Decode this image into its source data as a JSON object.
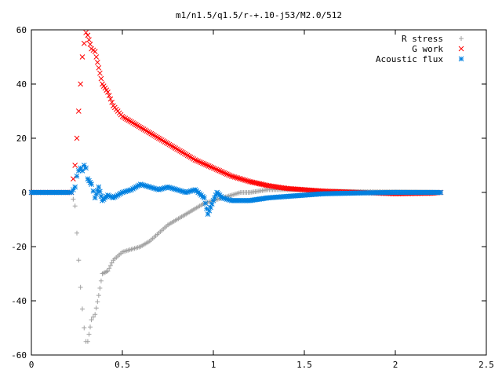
{
  "chart_data": {
    "type": "scatter",
    "title": "m1/n1.5/q1.5/r-+.10-j53/M2.0/512",
    "xlabel": "",
    "ylabel": "",
    "xlim": [
      0,
      2.5
    ],
    "ylim": [
      -60,
      60
    ],
    "x_ticks": [
      0,
      0.5,
      1,
      1.5,
      2,
      2.5
    ],
    "x_tick_labels": [
      "0",
      "0.5",
      "1",
      "1.5",
      "2",
      "2.5"
    ],
    "y_ticks": [
      -60,
      -40,
      -20,
      0,
      20,
      40,
      60
    ],
    "y_tick_labels": [
      "-60",
      "-40",
      "-20",
      "0",
      "20",
      "40",
      "60"
    ],
    "grid": false,
    "legend_position": "top-right",
    "series": [
      {
        "name": "R stress",
        "color": "#a0a0a0",
        "marker": "plus",
        "x": [
          0.0,
          0.1,
          0.2,
          0.22,
          0.24,
          0.25,
          0.26,
          0.27,
          0.28,
          0.29,
          0.3,
          0.31,
          0.33,
          0.35,
          0.37,
          0.39,
          0.42,
          0.45,
          0.5,
          0.55,
          0.6,
          0.65,
          0.7,
          0.75,
          0.8,
          0.85,
          0.9,
          0.95,
          1.0,
          1.05,
          1.1,
          1.15,
          1.2,
          1.3,
          1.4,
          1.5,
          1.6,
          1.8,
          2.0,
          2.2,
          2.25
        ],
        "y": [
          0,
          0,
          0,
          0,
          -5,
          -15,
          -25,
          -35,
          -43,
          -50,
          -55,
          -55,
          -47,
          -45,
          -38,
          -30,
          -29,
          -25,
          -22,
          -21,
          -20,
          -18,
          -15,
          -12,
          -10,
          -8,
          -6,
          -4,
          -3,
          -2,
          -1,
          0,
          0,
          1,
          1,
          1,
          0.5,
          0.3,
          0.2,
          0.1,
          0
        ]
      },
      {
        "name": "G work",
        "color": "#ff0000",
        "marker": "cross",
        "x": [
          0.0,
          0.1,
          0.2,
          0.22,
          0.24,
          0.25,
          0.26,
          0.27,
          0.28,
          0.29,
          0.3,
          0.31,
          0.33,
          0.35,
          0.37,
          0.39,
          0.42,
          0.45,
          0.5,
          0.55,
          0.6,
          0.65,
          0.7,
          0.75,
          0.8,
          0.85,
          0.9,
          0.95,
          1.0,
          1.05,
          1.1,
          1.15,
          1.2,
          1.3,
          1.4,
          1.5,
          1.6,
          1.8,
          2.0,
          2.2,
          2.25
        ],
        "y": [
          0,
          0,
          0,
          0,
          10,
          20,
          30,
          40,
          50,
          55,
          59,
          58,
          53,
          52,
          46,
          40,
          37,
          32,
          28,
          26,
          24,
          22,
          20,
          18,
          16,
          14,
          12,
          10.5,
          9,
          7.5,
          6,
          5,
          4,
          2.5,
          1.5,
          1,
          0.5,
          0,
          -0.5,
          -0.3,
          0
        ]
      },
      {
        "name": "Acoustic flux",
        "color": "#0080e0",
        "marker": "star",
        "x": [
          0.0,
          0.1,
          0.2,
          0.22,
          0.24,
          0.25,
          0.26,
          0.27,
          0.28,
          0.29,
          0.3,
          0.31,
          0.33,
          0.35,
          0.37,
          0.39,
          0.42,
          0.45,
          0.5,
          0.55,
          0.6,
          0.65,
          0.7,
          0.75,
          0.8,
          0.85,
          0.9,
          0.95,
          0.97,
          1.0,
          1.02,
          1.05,
          1.1,
          1.15,
          1.2,
          1.3,
          1.4,
          1.5,
          1.6,
          1.8,
          2.0,
          2.2,
          2.25
        ],
        "y": [
          0,
          0,
          0,
          0,
          2,
          6,
          8,
          9,
          8,
          10,
          9,
          5,
          3,
          -2,
          2,
          -3,
          -1,
          -2,
          0,
          1,
          3,
          2,
          1,
          2,
          1,
          0,
          1,
          -2,
          -8,
          -3,
          0,
          -2,
          -3,
          -3,
          -3,
          -2,
          -1.5,
          -1,
          -0.5,
          -0.2,
          0,
          0,
          0
        ]
      }
    ]
  }
}
